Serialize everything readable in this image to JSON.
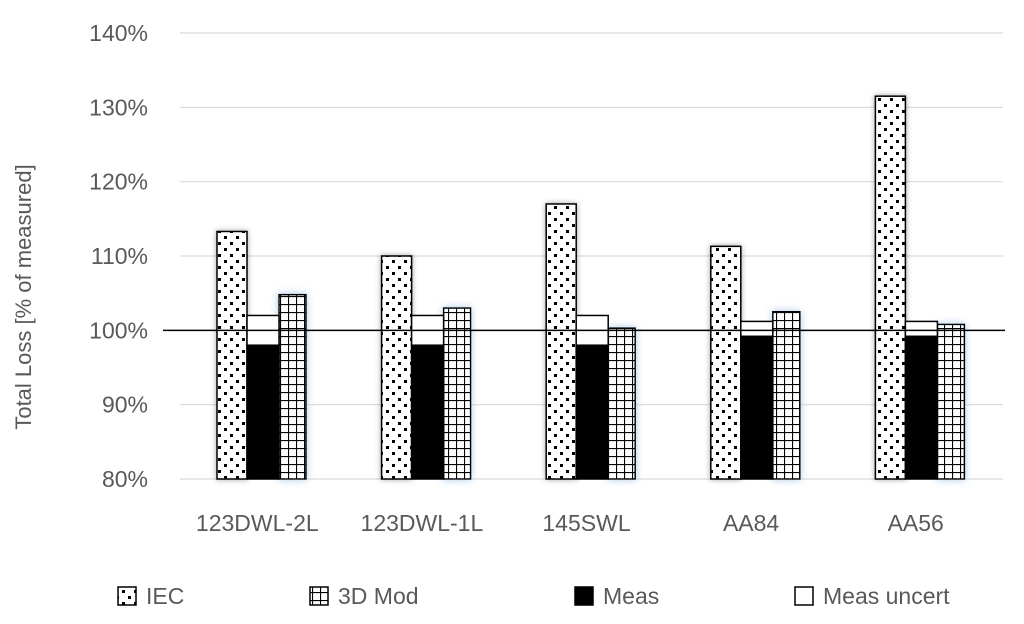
{
  "chart_data": {
    "type": "bar",
    "title": "",
    "xlabel": "",
    "ylabel": "Total Loss [% of measured]",
    "ylim": [
      80,
      140
    ],
    "yticks": [
      "80%",
      "90%",
      "100%",
      "110%",
      "120%",
      "130%",
      "140%"
    ],
    "yticks_values": [
      80,
      90,
      100,
      110,
      120,
      130,
      140
    ],
    "reference_line": 100,
    "categories": [
      "123DWL-2L",
      "123DWL-1L",
      "145SWL",
      "AA84",
      "AA56"
    ],
    "series": [
      {
        "name": "IEC",
        "values": [
          113.3,
          110.0,
          117.0,
          111.3,
          131.5
        ],
        "pattern": "dots"
      },
      {
        "name": "3D Mod",
        "values": [
          104.8,
          103.0,
          100.3,
          102.5,
          100.8
        ],
        "pattern": "grid"
      },
      {
        "name": "Meas",
        "values": [
          98.0,
          98.0,
          98.0,
          99.2,
          99.2
        ],
        "pattern": "solid",
        "color": "#000000"
      },
      {
        "name": "Meas uncert",
        "low": [
          98.0,
          98.0,
          98.0,
          99.2,
          99.2
        ],
        "high": [
          102.0,
          102.0,
          102.0,
          101.2,
          101.2
        ],
        "pattern": "empty",
        "color": "#ffffff"
      }
    ],
    "legend": {
      "position": "bottom",
      "items": [
        "IEC",
        "3D Mod",
        "Meas",
        "Meas uncert"
      ]
    },
    "grid": true,
    "colors": {
      "grid": "#d9d9d9",
      "axis_text": "#595959",
      "bar_stroke": "#000000",
      "glow": "#9fc3e8"
    }
  }
}
